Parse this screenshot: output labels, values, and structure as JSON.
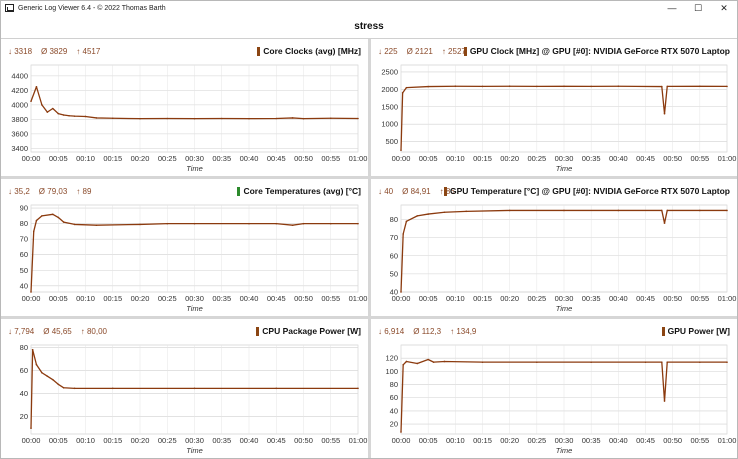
{
  "window": {
    "title": "Generic Log Viewer 6.4 - © 2022 Thomas Barth",
    "minimize": "—",
    "maximize": "☐",
    "close": "✕"
  },
  "header": {
    "title": "stress"
  },
  "colors": {
    "series": "#8b3a0e",
    "spike": "#e00000",
    "grid": "#c8c8c8",
    "stats": "#8a4a2a"
  },
  "chart_data": [
    {
      "type": "line",
      "id": "core-clocks",
      "title": "Core Clocks (avg) [MHz]",
      "stats": {
        "min": "↓ 3318",
        "avg": "Ø 3829",
        "max": "↑ 4517"
      },
      "xlabel": "Time",
      "x_ticks": [
        "00:00",
        "00:05",
        "00:10",
        "00:15",
        "00:20",
        "00:25",
        "00:30",
        "00:35",
        "00:40",
        "00:45",
        "00:50",
        "00:55",
        "01:00"
      ],
      "y_ticks": [
        "3400",
        "3600",
        "3800",
        "4000",
        "4200",
        "4400"
      ],
      "ylim": [
        3350,
        4550
      ],
      "series": [
        {
          "values": [
            [
              0,
              4050
            ],
            [
              1,
              4250
            ],
            [
              2,
              4000
            ],
            [
              3,
              3900
            ],
            [
              4,
              3950
            ],
            [
              5,
              3880
            ],
            [
              6,
              3860
            ],
            [
              7,
              3850
            ],
            [
              8,
              3845
            ],
            [
              10,
              3840
            ],
            [
              12,
              3820
            ],
            [
              15,
              3815
            ],
            [
              20,
              3810
            ],
            [
              25,
              3812
            ],
            [
              30,
              3810
            ],
            [
              35,
              3812
            ],
            [
              40,
              3810
            ],
            [
              45,
              3812
            ],
            [
              48,
              3820
            ],
            [
              50,
              3810
            ],
            [
              55,
              3815
            ],
            [
              60,
              3812
            ]
          ]
        }
      ]
    },
    {
      "type": "line",
      "id": "gpu-clock",
      "title": "GPU Clock [MHz] @ GPU [#0]: NVIDIA GeForce RTX 5070 Laptop",
      "stats": {
        "min": "↓ 225",
        "avg": "Ø 2121",
        "max": "↑ 2527"
      },
      "xlabel": "Time",
      "x_ticks": [
        "00:00",
        "00:05",
        "00:10",
        "00:15",
        "00:20",
        "00:25",
        "00:30",
        "00:35",
        "00:40",
        "00:45",
        "00:50",
        "00:55",
        "01:00"
      ],
      "y_ticks": [
        "500",
        "1000",
        "1500",
        "2000",
        "2500"
      ],
      "ylim": [
        200,
        2700
      ],
      "series": [
        {
          "values": [
            [
              0,
              250
            ],
            [
              0.3,
              1900
            ],
            [
              1,
              2050
            ],
            [
              5,
              2080
            ],
            [
              10,
              2090
            ],
            [
              15,
              2085
            ],
            [
              20,
              2090
            ],
            [
              25,
              2085
            ],
            [
              30,
              2088
            ],
            [
              35,
              2085
            ],
            [
              40,
              2090
            ],
            [
              48,
              2080
            ],
            [
              48.5,
              1300
            ],
            [
              49,
              2085
            ],
            [
              55,
              2088
            ],
            [
              60,
              2085
            ]
          ]
        }
      ]
    },
    {
      "type": "line",
      "id": "core-temperatures",
      "title": "Core Temperatures (avg) [°C]",
      "stats": {
        "min": "↓ 35,2",
        "avg": "Ø 79,03",
        "max": "↑ 89"
      },
      "xlabel": "Time",
      "x_ticks": [
        "00:00",
        "00:05",
        "00:10",
        "00:15",
        "00:20",
        "00:25",
        "00:30",
        "00:35",
        "00:40",
        "00:45",
        "00:50",
        "00:55",
        "01:00"
      ],
      "y_ticks": [
        "40",
        "50",
        "60",
        "70",
        "80",
        "90"
      ],
      "ylim": [
        36,
        92
      ],
      "series": [
        {
          "values": [
            [
              0,
              36
            ],
            [
              0.5,
              75
            ],
            [
              1,
              82
            ],
            [
              2,
              85
            ],
            [
              4,
              86
            ],
            [
              5,
              84
            ],
            [
              6,
              81
            ],
            [
              8,
              79.5
            ],
            [
              12,
              79
            ],
            [
              20,
              79.5
            ],
            [
              25,
              80
            ],
            [
              30,
              80
            ],
            [
              40,
              80
            ],
            [
              45,
              80
            ],
            [
              48,
              79
            ],
            [
              50,
              80
            ],
            [
              55,
              80
            ],
            [
              60,
              80
            ]
          ]
        }
      ]
    },
    {
      "type": "line",
      "id": "gpu-temperature",
      "title": "GPU Temperature [°C] @ GPU [#0]: NVIDIA GeForce RTX 5070 Laptop",
      "stats": {
        "min": "↓ 40",
        "avg": "Ø 84,91",
        "max": "↑ 86"
      },
      "xlabel": "Time",
      "x_ticks": [
        "00:00",
        "00:05",
        "00:10",
        "00:15",
        "00:20",
        "00:25",
        "00:30",
        "00:35",
        "00:40",
        "00:45",
        "00:50",
        "00:55",
        "01:00"
      ],
      "y_ticks": [
        "40",
        "50",
        "60",
        "70",
        "80"
      ],
      "ylim": [
        40,
        88
      ],
      "series": [
        {
          "values": [
            [
              0,
              40
            ],
            [
              0.4,
              72
            ],
            [
              1,
              79
            ],
            [
              3,
              82
            ],
            [
              5,
              83
            ],
            [
              8,
              84
            ],
            [
              12,
              84.5
            ],
            [
              20,
              85
            ],
            [
              30,
              85
            ],
            [
              40,
              85
            ],
            [
              48,
              85
            ],
            [
              48.5,
              78
            ],
            [
              49,
              85
            ],
            [
              55,
              85
            ],
            [
              60,
              85
            ]
          ]
        }
      ]
    },
    {
      "type": "line",
      "id": "cpu-package-power",
      "title": "CPU Package Power [W]",
      "stats": {
        "min": "↓ 7,794",
        "avg": "Ø 45,65",
        "max": "↑ 80,00"
      },
      "xlabel": "Time",
      "x_ticks": [
        "00:00",
        "00:05",
        "00:10",
        "00:15",
        "00:20",
        "00:25",
        "00:30",
        "00:35",
        "00:40",
        "00:45",
        "00:50",
        "00:55",
        "01:00"
      ],
      "y_ticks": [
        "20",
        "40",
        "60",
        "80"
      ],
      "ylim": [
        5,
        82
      ],
      "series": [
        {
          "values": [
            [
              0,
              10
            ],
            [
              0.3,
              78
            ],
            [
              1,
              65
            ],
            [
              2,
              58
            ],
            [
              3,
              55
            ],
            [
              4,
              52
            ],
            [
              5,
              48
            ],
            [
              6,
              45
            ],
            [
              8,
              44.5
            ],
            [
              15,
              44.5
            ],
            [
              30,
              44.5
            ],
            [
              45,
              44.5
            ],
            [
              60,
              44.5
            ]
          ]
        }
      ]
    },
    {
      "type": "line",
      "id": "gpu-power",
      "title": "GPU Power [W]",
      "stats": {
        "min": "↓ 6,914",
        "avg": "Ø 112,3",
        "max": "↑ 134,9"
      },
      "xlabel": "Time",
      "x_ticks": [
        "00:00",
        "00:05",
        "00:10",
        "00:15",
        "00:20",
        "00:25",
        "00:30",
        "00:35",
        "00:40",
        "00:45",
        "00:50",
        "00:55",
        "01:00"
      ],
      "y_ticks": [
        "20",
        "40",
        "60",
        "80",
        "100",
        "120"
      ],
      "ylim": [
        5,
        140
      ],
      "series": [
        {
          "values": [
            [
              0,
              8
            ],
            [
              0.4,
              110
            ],
            [
              1,
              115
            ],
            [
              3,
              112
            ],
            [
              5,
              118
            ],
            [
              6,
              114
            ],
            [
              8,
              115
            ],
            [
              15,
              114
            ],
            [
              25,
              114
            ],
            [
              35,
              114
            ],
            [
              45,
              114
            ],
            [
              48,
              114
            ],
            [
              48.5,
              55
            ],
            [
              49,
              114
            ],
            [
              55,
              114
            ],
            [
              60,
              114
            ]
          ]
        }
      ]
    }
  ]
}
